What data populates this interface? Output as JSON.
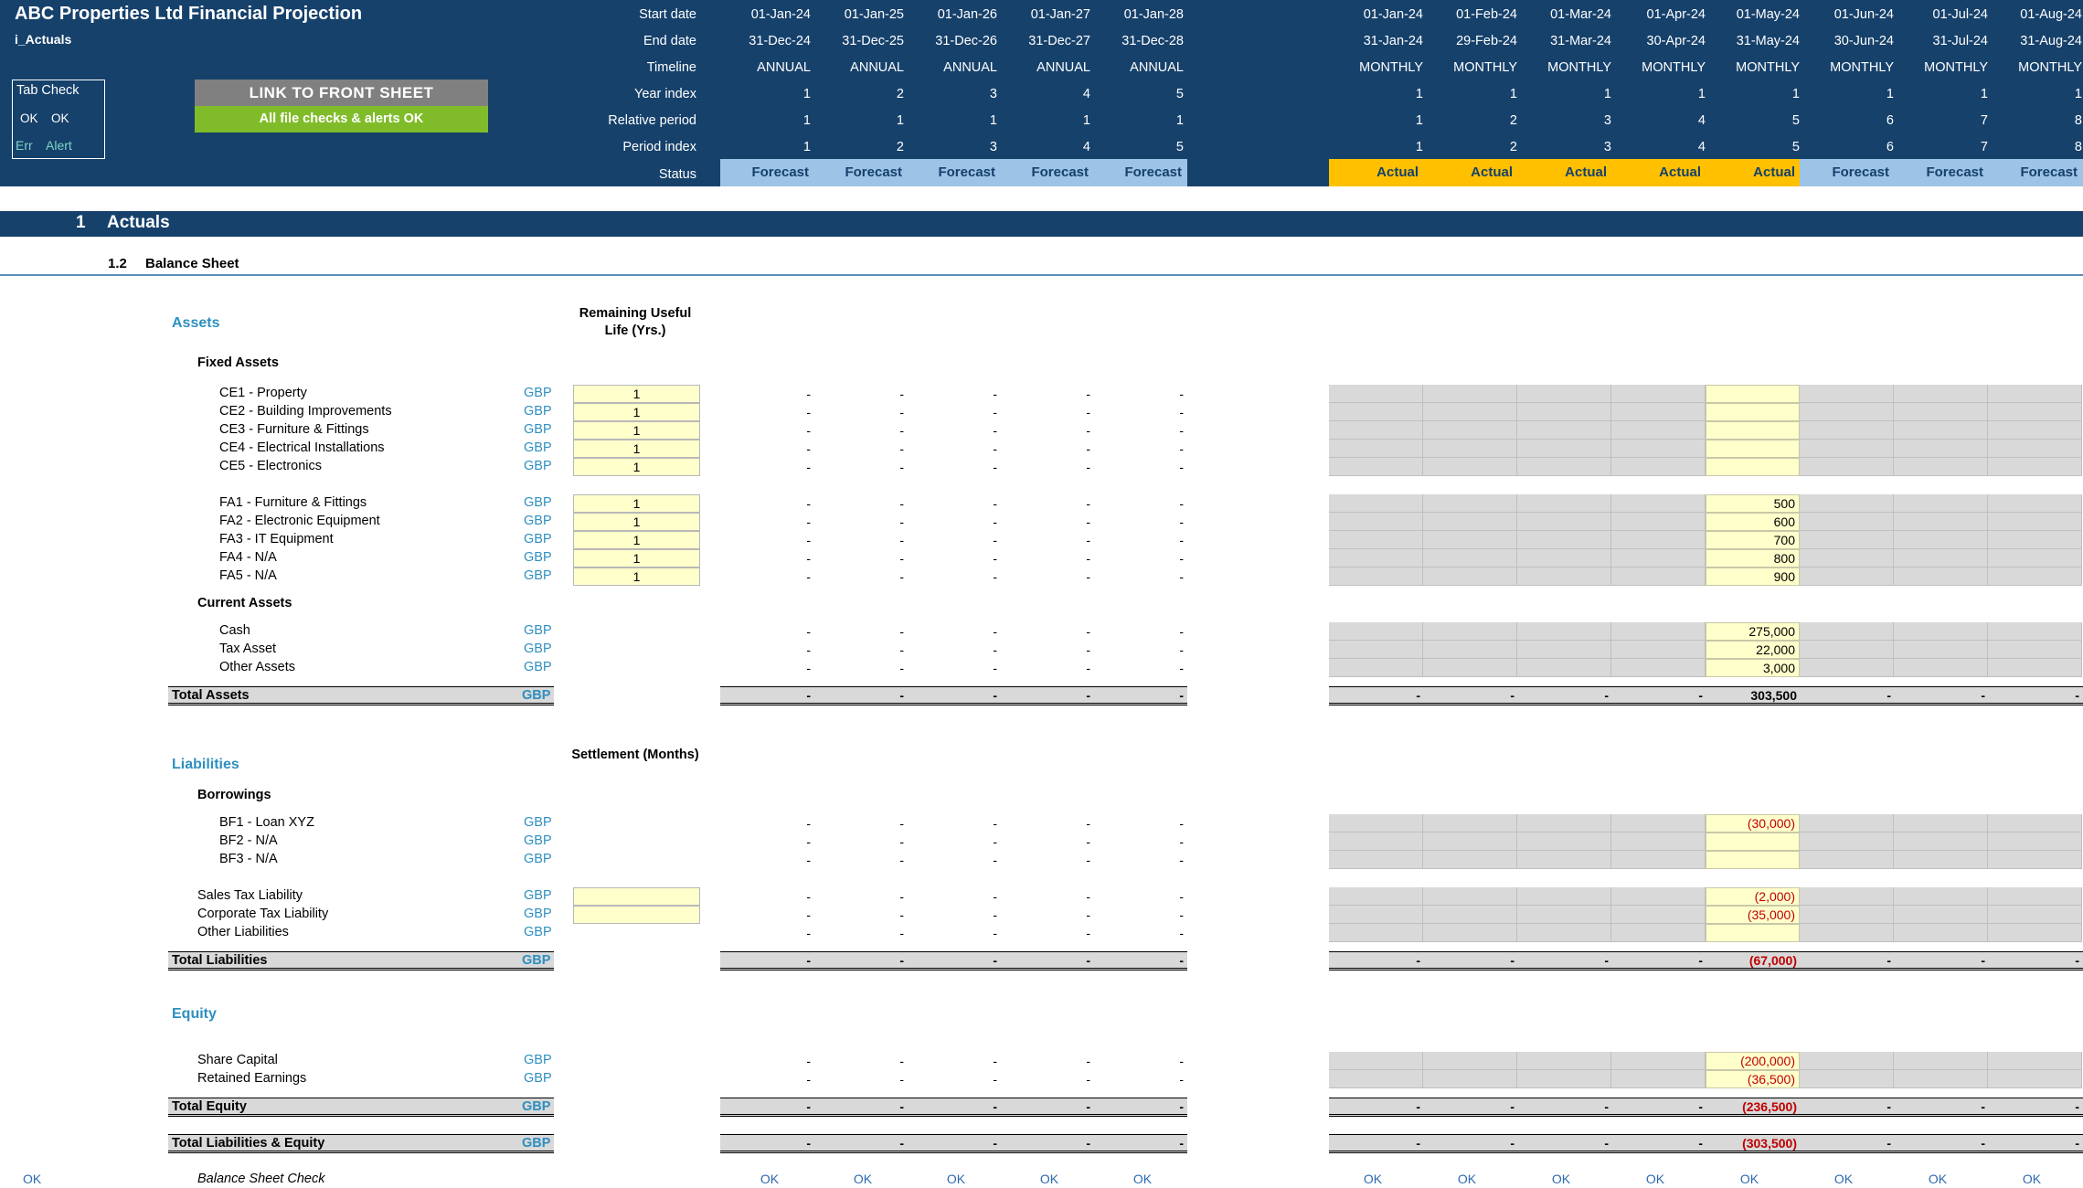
{
  "header": {
    "title": "ABC Properties Ltd Financial Projection",
    "subtitle": "i_Actuals",
    "tab_check": {
      "title": "Tab Check",
      "ok1": "OK",
      "ok2": "OK",
      "err": "Err",
      "alert": "Alert"
    },
    "link_button": "LINK TO FRONT SHEET",
    "checks_ok": "All file checks & alerts OK",
    "row_labels": [
      "Start date",
      "End date",
      "Timeline",
      "Year index",
      "Relative period",
      "Period index",
      "Status"
    ],
    "annual": {
      "start": [
        "01-Jan-24",
        "01-Jan-25",
        "01-Jan-26",
        "01-Jan-27",
        "01-Jan-28"
      ],
      "end": [
        "31-Dec-24",
        "31-Dec-25",
        "31-Dec-26",
        "31-Dec-27",
        "31-Dec-28"
      ],
      "timeline": [
        "ANNUAL",
        "ANNUAL",
        "ANNUAL",
        "ANNUAL",
        "ANNUAL"
      ],
      "year_index": [
        "1",
        "2",
        "3",
        "4",
        "5"
      ],
      "relative": [
        "1",
        "1",
        "1",
        "1",
        "1"
      ],
      "period_index": [
        "1",
        "2",
        "3",
        "4",
        "5"
      ],
      "status": [
        "Forecast",
        "Forecast",
        "Forecast",
        "Forecast",
        "Forecast"
      ]
    },
    "monthly": {
      "start": [
        "01-Jan-24",
        "01-Feb-24",
        "01-Mar-24",
        "01-Apr-24",
        "01-May-24",
        "01-Jun-24",
        "01-Jul-24",
        "01-Aug-24"
      ],
      "end": [
        "31-Jan-24",
        "29-Feb-24",
        "31-Mar-24",
        "30-Apr-24",
        "31-May-24",
        "30-Jun-24",
        "31-Jul-24",
        "31-Aug-24"
      ],
      "timeline": [
        "MONTHLY",
        "MONTHLY",
        "MONTHLY",
        "MONTHLY",
        "MONTHLY",
        "MONTHLY",
        "MONTHLY",
        "MONTHLY"
      ],
      "year_index": [
        "1",
        "1",
        "1",
        "1",
        "1",
        "1",
        "1",
        "1"
      ],
      "relative": [
        "1",
        "2",
        "3",
        "4",
        "5",
        "6",
        "7",
        "8"
      ],
      "period_index": [
        "1",
        "2",
        "3",
        "4",
        "5",
        "6",
        "7",
        "8"
      ],
      "status": [
        "Actual",
        "Actual",
        "Actual",
        "Actual",
        "Actual",
        "Forecast",
        "Forecast",
        "Forecast"
      ]
    }
  },
  "section": {
    "number": "1",
    "name": "Actuals",
    "sub_number": "1.2",
    "sub_name": "Balance Sheet"
  },
  "assets": {
    "group": "Assets",
    "life_header": "Remaining Useful Life (Yrs.)",
    "fixed_title": "Fixed Assets",
    "current_title": "Current Assets",
    "total_label": "Total Assets",
    "total_monthly": [
      "-",
      "-",
      "-",
      "-",
      "303,500",
      "-",
      "-",
      "-"
    ]
  },
  "liabilities": {
    "group": "Liabilities",
    "settle_header": "Settlement (Months)",
    "borrow_title": "Borrowings",
    "total_label": "Total Liabilities",
    "total_monthly": [
      "-",
      "-",
      "-",
      "-",
      "(67,000)",
      "-",
      "-",
      "-"
    ]
  },
  "equity": {
    "group": "Equity",
    "total_label": "Total Equity",
    "total_monthly": [
      "-",
      "-",
      "-",
      "-",
      "(236,500)",
      "-",
      "-",
      "-"
    ]
  },
  "tle": {
    "label": "Total Liabilities & Equity",
    "total_monthly": [
      "-",
      "-",
      "-",
      "-",
      "(303,500)",
      "-",
      "-",
      "-"
    ]
  },
  "unit": "GBP",
  "dash": "-",
  "rows": [
    {
      "label": "CE1 - Property",
      "life": "1",
      "may": ""
    },
    {
      "label": "CE2 - Building Improvements",
      "life": "1",
      "may": ""
    },
    {
      "label": "CE3 - Furniture & Fittings",
      "life": "1",
      "may": ""
    },
    {
      "label": "CE4 - Electrical Installations",
      "life": "1",
      "may": ""
    },
    {
      "label": "CE5 - Electronics",
      "life": "1",
      "may": ""
    },
    {
      "label": "FA1 - Furniture & Fittings",
      "life": "1",
      "may": "500"
    },
    {
      "label": "FA2 - Electronic Equipment",
      "life": "1",
      "may": "600"
    },
    {
      "label": "FA3 - IT Equipment",
      "life": "1",
      "may": "700"
    },
    {
      "label": "FA4 - N/A",
      "life": "1",
      "may": "800"
    },
    {
      "label": "FA5 - N/A",
      "life": "1",
      "may": "900"
    },
    {
      "label": "Cash",
      "life": null,
      "may": "275,000"
    },
    {
      "label": "Tax Asset",
      "life": null,
      "may": "22,000"
    },
    {
      "label": "Other Assets",
      "life": null,
      "may": "3,000"
    },
    {
      "label": "BF1 - Loan XYZ",
      "life": null,
      "may": "(30,000)"
    },
    {
      "label": "BF2 - N/A",
      "life": null,
      "may": ""
    },
    {
      "label": "BF3 - N/A",
      "life": null,
      "may": ""
    },
    {
      "label": "Sales Tax Liability",
      "life": "",
      "may": "(2,000)"
    },
    {
      "label": "Corporate Tax Liability",
      "life": "",
      "may": "(35,000)"
    },
    {
      "label": "Other Liabilities",
      "life": null,
      "may": ""
    },
    {
      "label": "Share Capital",
      "life": null,
      "may": "(200,000)"
    },
    {
      "label": "Retained Earnings",
      "life": null,
      "may": "(36,500)"
    }
  ],
  "check": {
    "left_ok": "OK",
    "label": "Balance Sheet Check",
    "annual": [
      "OK",
      "OK",
      "OK",
      "OK",
      "OK"
    ],
    "monthly": [
      "OK",
      "OK",
      "OK",
      "OK",
      "OK",
      "OK",
      "OK",
      "OK"
    ]
  }
}
